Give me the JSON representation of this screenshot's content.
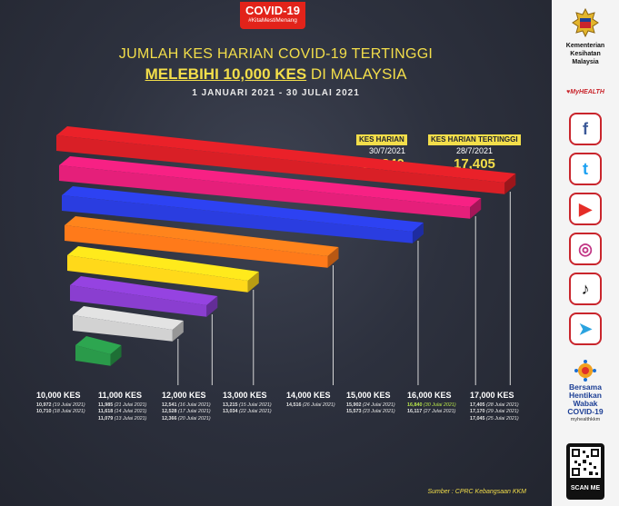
{
  "badge": {
    "title": "COVID-19",
    "hashtag": "#KitaMestiMenang"
  },
  "header": {
    "line1": "JUMLAH KES HARIAN COVID-19 TERTINGGI",
    "line2_bold": "MELEBIHI 10,000 KES",
    "line2_rest": " DI MALAYSIA",
    "date_range": "1 JANUARI 2021 - 30 JULAI 2021"
  },
  "stats": {
    "daily": {
      "label": "KES HARIAN",
      "date": "30/7/2021",
      "value": "16,840"
    },
    "highest": {
      "label": "KES HARIAN TERTINGGI",
      "date": "28/7/2021",
      "value": "17,405"
    }
  },
  "chart_data": {
    "type": "bar",
    "orientation": "horizontal-3d",
    "categories": [
      "10,000 KES",
      "11,000 KES",
      "12,000 KES",
      "13,000 KES",
      "14,000 KES",
      "15,000 KES",
      "16,000 KES",
      "17,000 KES"
    ],
    "values": [
      10972,
      11985,
      12541,
      13215,
      14516,
      15902,
      16840,
      17405
    ],
    "colors": [
      "#2a9a4a",
      "#d2d2d2",
      "#8a3ed0",
      "#ffd91a",
      "#ff7a1a",
      "#2a3de0",
      "#e51f7a",
      "#d91f26"
    ],
    "records": [
      [
        [
          "10,972",
          "(19 Julai 2021)"
        ],
        [
          "10,710",
          "(18 Julai 2021)"
        ]
      ],
      [
        [
          "11,985",
          "(21 Julai 2021)"
        ],
        [
          "11,618",
          "(14 Julai 2021)"
        ],
        [
          "11,079",
          "(13 Julai 2021)"
        ]
      ],
      [
        [
          "12,541",
          "(16 Julai 2021)"
        ],
        [
          "12,528",
          "(17 Julai 2021)"
        ],
        [
          "12,366",
          "(20 Julai 2021)"
        ]
      ],
      [
        [
          "13,215",
          "(15 Julai 2021)"
        ],
        [
          "13,034",
          "(22 Julai 2021)"
        ]
      ],
      [
        [
          "14,516",
          "(26 Julai 2021)"
        ]
      ],
      [
        [
          "15,902",
          "(24 Julai 2021)"
        ],
        [
          "15,573",
          "(23 Julai 2021)"
        ]
      ],
      [
        [
          "16,840",
          "(30 Julai 2021)"
        ],
        [
          "16,117",
          "(27 Julai 2021)"
        ]
      ],
      [
        [
          "17,405",
          "(28 Julai 2021)"
        ],
        [
          "17,170",
          "(29 Julai 2021)"
        ],
        [
          "17,045",
          "(25 Julai 2021)"
        ]
      ]
    ],
    "highlight": {
      "group": 6,
      "item": 0
    },
    "title": "JUMLAH KES HARIAN COVID-19 TERTINGGI MELEBIHI 10,000 KES DI MALAYSIA"
  },
  "source": "Sumber : CPRC Kebangsaan KKM",
  "sidebar": {
    "ministry": [
      "Kementerian",
      "Kesihatan",
      "Malaysia"
    ],
    "myhealth": "MyHEALTH",
    "social": [
      {
        "name": "facebook",
        "glyph": "f",
        "color": "#3b5998"
      },
      {
        "name": "twitter",
        "glyph": "t",
        "color": "#1da1f2"
      },
      {
        "name": "youtube",
        "glyph": "▶",
        "color": "#e52d27"
      },
      {
        "name": "instagram",
        "glyph": "◎",
        "color": "#c13584"
      },
      {
        "name": "tiktok",
        "glyph": "♪",
        "color": "#111111"
      },
      {
        "name": "telegram",
        "glyph": "➤",
        "color": "#2aa3df"
      }
    ],
    "campaign": [
      "Bersama",
      "Hentikan",
      "Wabak",
      "COVID-19"
    ],
    "campaign_site": "myhealthkkm",
    "scan_label": "SCAN ME"
  }
}
